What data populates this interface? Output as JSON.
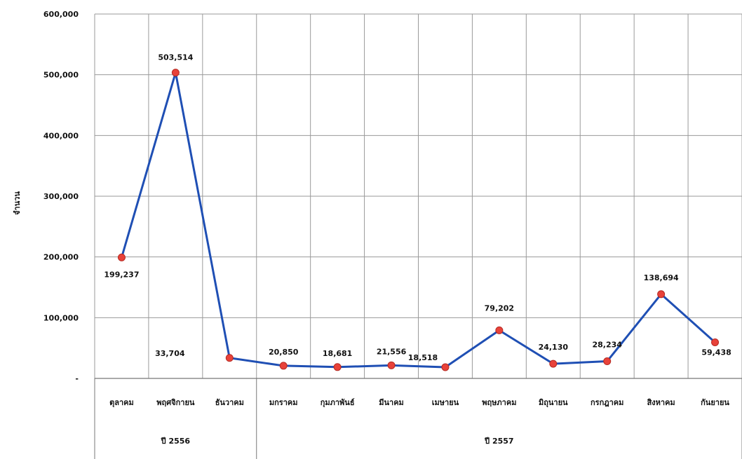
{
  "chart_data": {
    "type": "line",
    "title": "",
    "ylabel": "จำนวน",
    "xlabel": "",
    "ylim": [
      0,
      600000
    ],
    "y_ticks": [
      {
        "value": 0,
        "label": "-"
      },
      {
        "value": 100000,
        "label": "100,000"
      },
      {
        "value": 200000,
        "label": "200,000"
      },
      {
        "value": 300000,
        "label": "300,000"
      },
      {
        "value": 400000,
        "label": "400,000"
      },
      {
        "value": 500000,
        "label": "500,000"
      },
      {
        "value": 600000,
        "label": "600,000"
      }
    ],
    "grid": true,
    "categories": [
      "ตุลาคม",
      "พฤศจิกายน",
      "ธันวาคม",
      "มกราคม",
      "กุมภาพันธ์",
      "มีนาคม",
      "เมษายน",
      "พฤษภาคม",
      "มิถุนายน",
      "กรกฎาคม",
      "สิงหาคม",
      "กันยายน"
    ],
    "category_groups": [
      {
        "label": "ปี 2556",
        "count": 3
      },
      {
        "label": "ปี 2557",
        "count": 9
      }
    ],
    "series": [
      {
        "values": [
          199237,
          503514,
          33704,
          20850,
          18681,
          21556,
          18518,
          79202,
          24130,
          28234,
          138694,
          59438
        ],
        "value_labels": [
          "199,237",
          "503,514",
          "33,704",
          "20,850",
          "18,681",
          "21,556",
          "18,518",
          "79,202",
          "24,130",
          "28,234",
          "138,694",
          "59,438"
        ],
        "line_color": "#1f4fb4",
        "marker_color": "#e8423a"
      }
    ]
  }
}
